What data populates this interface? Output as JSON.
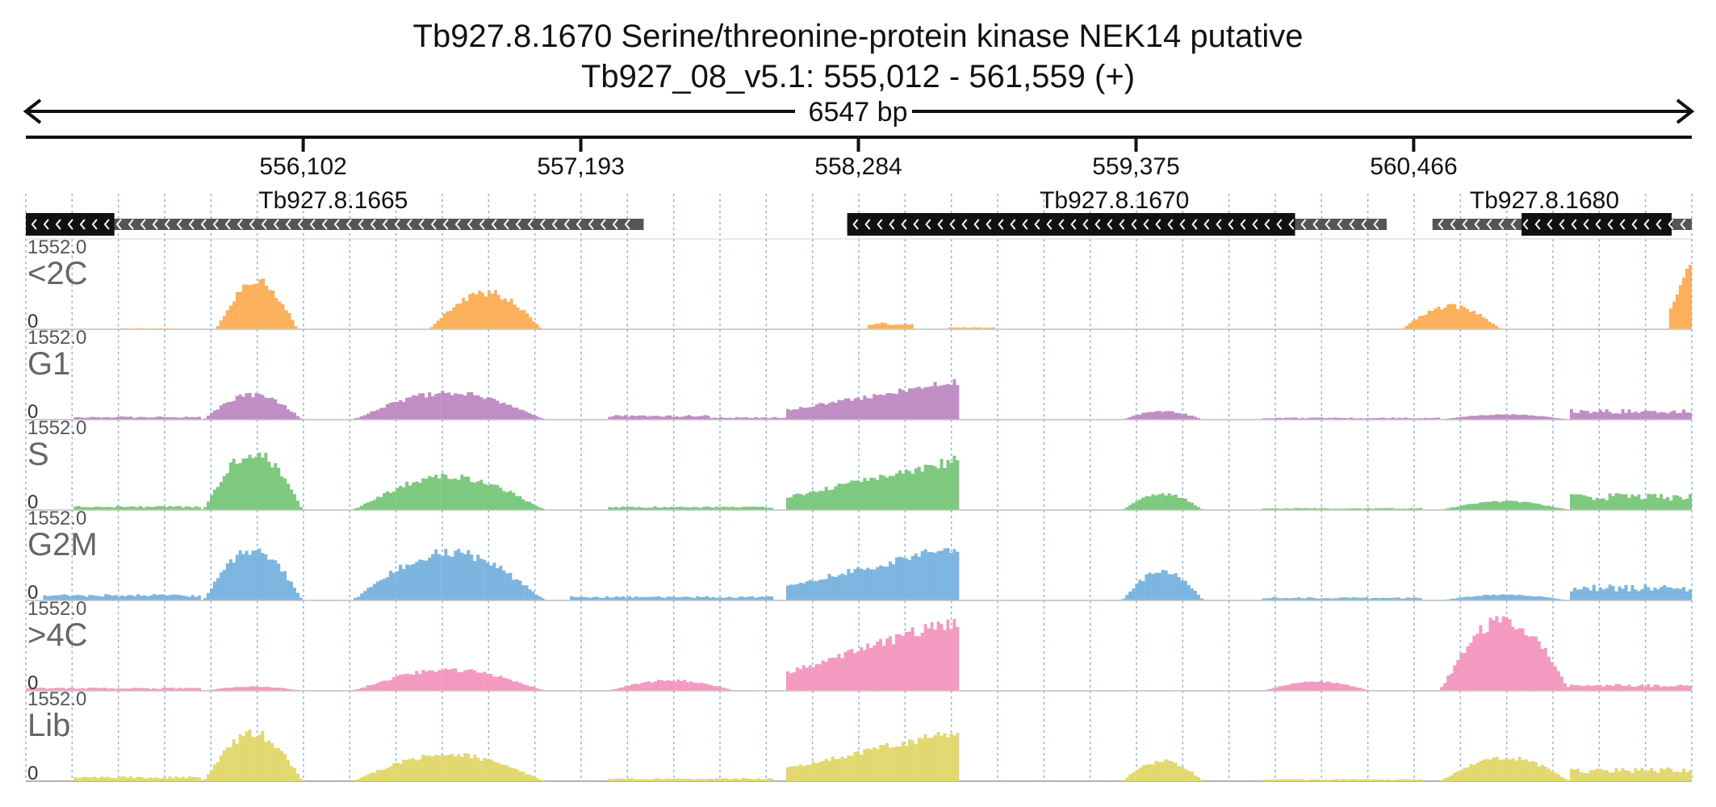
{
  "chart_data": {
    "type": "area",
    "title": "Tb927.8.1670  Serine/threonine-protein kinase NEK14  putative",
    "subtitle": "Tb927_08_v5.1: 555,012 - 561,559 (+)",
    "span_label": "6547 bp",
    "x_range": [
      555012,
      561559
    ],
    "ticks": [
      {
        "pos": 556102,
        "label": "556,102"
      },
      {
        "pos": 557193,
        "label": "557,193"
      },
      {
        "pos": 558284,
        "label": "558,284"
      },
      {
        "pos": 559375,
        "label": "559,375"
      },
      {
        "pos": 560466,
        "label": "560,466"
      }
    ],
    "genes": [
      {
        "name": "Tb927.8.1665",
        "label_pos": 556220,
        "strand": "-",
        "utr": [
          555012,
          557440
        ],
        "cds": [
          555012,
          555360
        ]
      },
      {
        "name": "Tb927.8.1670",
        "label_pos": 559290,
        "strand": "-",
        "utr": [
          558240,
          560360
        ],
        "cds": [
          558240,
          560000
        ]
      },
      {
        "name": "Tb927.8.1680",
        "label_pos": 560980,
        "strand": "-",
        "utr": [
          560540,
          561559
        ],
        "cds": [
          560890,
          561480
        ]
      }
    ],
    "tracks": [
      {
        "name": "<2C",
        "color": "#FBB05C",
        "ymax_label": "1552.0",
        "ymin_label": "0",
        "ylim": [
          0,
          1552
        ],
        "segments": [
          {
            "x": [
              555380,
              555600
            ],
            "peak": 20,
            "shape": "flat"
          },
          {
            "x": [
              555760,
              556080
            ],
            "peak": 1000,
            "shape": "hump"
          },
          {
            "x": [
              556600,
              557040
            ],
            "peak": 770,
            "shape": "hump"
          },
          {
            "x": [
              558320,
              558500
            ],
            "peak": 140,
            "shape": "flat"
          },
          {
            "x": [
              558640,
              558820
            ],
            "peak": 40,
            "shape": "flat"
          },
          {
            "x": [
              560420,
              560810
            ],
            "peak": 480,
            "shape": "hump"
          },
          {
            "x": [
              561470,
              561559
            ],
            "peak": 1400,
            "shape": "rise"
          }
        ]
      },
      {
        "name": "G1",
        "color": "#C08DC4",
        "ymax_label": "1552.0",
        "ymin_label": "0",
        "ylim": [
          0,
          1552
        ],
        "segments": [
          {
            "x": [
              555200,
              555700
            ],
            "peak": 60,
            "shape": "flat"
          },
          {
            "x": [
              555710,
              556100
            ],
            "peak": 520,
            "shape": "hump"
          },
          {
            "x": [
              556300,
              557050
            ],
            "peak": 560,
            "shape": "hump"
          },
          {
            "x": [
              557300,
              557700
            ],
            "peak": 90,
            "shape": "flat"
          },
          {
            "x": [
              557700,
              558000
            ],
            "peak": 50,
            "shape": "flat"
          },
          {
            "x": [
              558000,
              558680
            ],
            "peak": 800,
            "shape": "rise"
          },
          {
            "x": [
              559320,
              559640
            ],
            "peak": 180,
            "shape": "hump"
          },
          {
            "x": [
              559870,
              560570
            ],
            "peak": 40,
            "shape": "flat"
          },
          {
            "x": [
              560570,
              561080
            ],
            "peak": 110,
            "shape": "hump"
          },
          {
            "x": [
              561080,
              561559
            ],
            "peak": 200,
            "shape": "flat"
          }
        ]
      },
      {
        "name": "S",
        "color": "#7DC97F",
        "ymax_label": "1552.0",
        "ymin_label": "0",
        "ylim": [
          0,
          1552
        ],
        "segments": [
          {
            "x": [
              555200,
              555700
            ],
            "peak": 80,
            "shape": "flat"
          },
          {
            "x": [
              555710,
              556100
            ],
            "peak": 1200,
            "shape": "hump"
          },
          {
            "x": [
              556300,
              557050
            ],
            "peak": 700,
            "shape": "hump"
          },
          {
            "x": [
              557300,
              557950
            ],
            "peak": 70,
            "shape": "flat"
          },
          {
            "x": [
              558000,
              558680
            ],
            "peak": 1050,
            "shape": "rise"
          },
          {
            "x": [
              559320,
              559640
            ],
            "peak": 340,
            "shape": "hump"
          },
          {
            "x": [
              559870,
              560500
            ],
            "peak": 40,
            "shape": "flat"
          },
          {
            "x": [
              560570,
              561080
            ],
            "peak": 180,
            "shape": "hump"
          },
          {
            "x": [
              561080,
              561559
            ],
            "peak": 320,
            "shape": "flat"
          }
        ]
      },
      {
        "name": "G2M",
        "color": "#7CB6E0",
        "ymax_label": "1552.0",
        "ymin_label": "0",
        "ylim": [
          0,
          1552
        ],
        "segments": [
          {
            "x": [
              555080,
              555700
            ],
            "peak": 120,
            "shape": "flat"
          },
          {
            "x": [
              555710,
              556100
            ],
            "peak": 1050,
            "shape": "hump"
          },
          {
            "x": [
              556300,
              557050
            ],
            "peak": 1000,
            "shape": "hump"
          },
          {
            "x": [
              557150,
              557950
            ],
            "peak": 80,
            "shape": "flat"
          },
          {
            "x": [
              558000,
              558680
            ],
            "peak": 1150,
            "shape": "rise"
          },
          {
            "x": [
              559320,
              559640
            ],
            "peak": 620,
            "shape": "hump"
          },
          {
            "x": [
              559870,
              560500
            ],
            "peak": 60,
            "shape": "flat"
          },
          {
            "x": [
              560570,
              561080
            ],
            "peak": 120,
            "shape": "hump"
          },
          {
            "x": [
              561080,
              561559
            ],
            "peak": 300,
            "shape": "flat"
          }
        ]
      },
      {
        "name": ">4C",
        "color": "#F49AC1",
        "ymax_label": "1552.0",
        "ymin_label": "0",
        "ylim": [
          0,
          1552
        ],
        "segments": [
          {
            "x": [
              555012,
              555700
            ],
            "peak": 60,
            "shape": "flat"
          },
          {
            "x": [
              555710,
              556100
            ],
            "peak": 90,
            "shape": "hump"
          },
          {
            "x": [
              556300,
              557050
            ],
            "peak": 440,
            "shape": "hump"
          },
          {
            "x": [
              557300,
              557800
            ],
            "peak": 220,
            "shape": "hump"
          },
          {
            "x": [
              558000,
              558680
            ],
            "peak": 1500,
            "shape": "rise"
          },
          {
            "x": [
              559870,
              560300
            ],
            "peak": 190,
            "shape": "hump"
          },
          {
            "x": [
              560570,
              561080
            ],
            "peak": 1500,
            "shape": "hump"
          },
          {
            "x": [
              561080,
              561559
            ],
            "peak": 130,
            "shape": "flat"
          }
        ]
      },
      {
        "name": "Lib",
        "color": "#E2D870",
        "ymax_label": "1552.0",
        "ymin_label": "0",
        "ylim": [
          0,
          1552
        ],
        "segments": [
          {
            "x": [
              555200,
              555700
            ],
            "peak": 90,
            "shape": "flat"
          },
          {
            "x": [
              555710,
              556100
            ],
            "peak": 1000,
            "shape": "hump"
          },
          {
            "x": [
              556300,
              557050
            ],
            "peak": 550,
            "shape": "hump"
          },
          {
            "x": [
              557300,
              557950
            ],
            "peak": 60,
            "shape": "flat"
          },
          {
            "x": [
              558000,
              558680
            ],
            "peak": 1050,
            "shape": "rise"
          },
          {
            "x": [
              559320,
              559640
            ],
            "peak": 420,
            "shape": "hump"
          },
          {
            "x": [
              559870,
              560500
            ],
            "peak": 40,
            "shape": "flat"
          },
          {
            "x": [
              560570,
              561080
            ],
            "peak": 500,
            "shape": "hump"
          },
          {
            "x": [
              561080,
              561559
            ],
            "peak": 260,
            "shape": "flat"
          }
        ]
      }
    ]
  }
}
